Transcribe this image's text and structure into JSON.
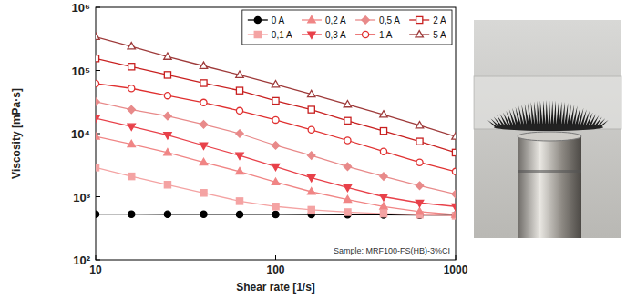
{
  "chart_data": {
    "type": "line",
    "x_label": "Shear rate [1/s]",
    "y_label": "Viscosity [mPa·s]",
    "annotations": [
      "Sample: MRF100-FS(HB)-3%CI"
    ],
    "log": true,
    "grid": false,
    "legend": "top-right",
    "xlim": [
      10,
      1000
    ],
    "ylim": [
      100,
      1000000
    ],
    "xticks": [
      10,
      100,
      1000
    ],
    "yticks": [
      {
        "value": 100,
        "label": "10²"
      },
      {
        "value": 1000,
        "label": "10³"
      },
      {
        "value": 10000,
        "label": "10⁴"
      },
      {
        "value": 100000,
        "label": "10⁵"
      },
      {
        "value": 1000000,
        "label": "10⁶"
      }
    ],
    "x": [
      10,
      15.8,
      25.1,
      39.8,
      63.1,
      100,
      158,
      251,
      398,
      631,
      1000
    ],
    "series": [
      {
        "name": "0 A",
        "color": "#000000",
        "marker": "circle",
        "values": [
          530,
          530,
          528,
          527,
          526,
          525,
          523,
          520,
          517,
          513,
          510
        ]
      },
      {
        "name": "0,1 A",
        "color": "#f4a3a3",
        "marker": "square",
        "values": [
          2900,
          2100,
          1550,
          1150,
          850,
          700,
          620,
          570,
          540,
          520,
          500
        ]
      },
      {
        "name": "0,2 A",
        "color": "#f08585",
        "marker": "triangle",
        "values": [
          9000,
          6800,
          5000,
          3500,
          2500,
          1700,
          1200,
          900,
          700,
          580,
          520
        ]
      },
      {
        "name": "0,3 A",
        "color": "#e8414a",
        "marker": "triangle-down",
        "values": [
          17500,
          13000,
          9500,
          6500,
          4500,
          3000,
          2000,
          1400,
          1000,
          800,
          700
        ]
      },
      {
        "name": "0,5 A",
        "color": "#e88a8a",
        "marker": "diamond",
        "values": [
          32000,
          24000,
          19000,
          14000,
          10000,
          6500,
          4500,
          3000,
          2100,
          1500,
          1100
        ]
      },
      {
        "name": "1 A",
        "color": "#e03030",
        "marker": "circle-open",
        "values": [
          62000,
          52000,
          40000,
          31000,
          23000,
          16500,
          11500,
          7800,
          5200,
          3500,
          2500
        ]
      },
      {
        "name": "2 A",
        "color": "#c82020",
        "marker": "square-open",
        "values": [
          155000,
          115000,
          85000,
          63000,
          48000,
          33000,
          24000,
          16000,
          11000,
          7500,
          5000
        ]
      },
      {
        "name": "5 A",
        "color": "#9e3a3a",
        "marker": "triangle-open",
        "values": [
          340000,
          240000,
          165000,
          118000,
          85000,
          60000,
          42000,
          29000,
          20000,
          13500,
          9000
        ]
      }
    ]
  }
}
